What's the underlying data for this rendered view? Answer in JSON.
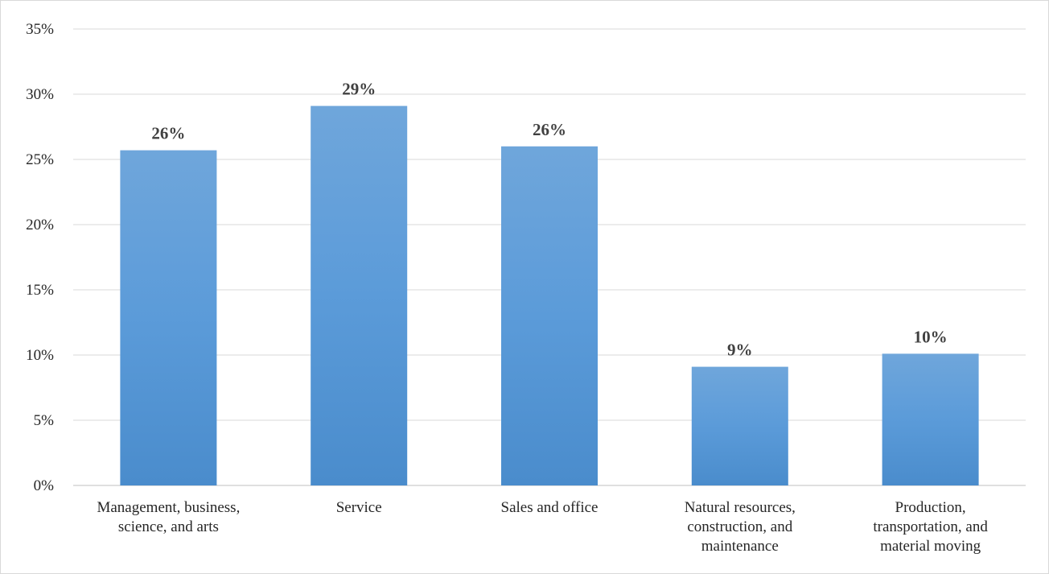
{
  "chart_data": {
    "type": "bar",
    "categories": [
      "Management, business, science, and arts",
      "Service",
      "Sales and office",
      "Natural resources, construction, and maintenance",
      "Production, transportation, and material moving"
    ],
    "category_label_lines": [
      [
        "Management, business,",
        "science, and arts"
      ],
      [
        "Service"
      ],
      [
        "Sales and office"
      ],
      [
        "Natural resources,",
        "construction, and",
        "maintenance"
      ],
      [
        "Production,",
        "transportation, and",
        "material moving"
      ]
    ],
    "values": [
      25.7,
      29.1,
      26.0,
      9.1,
      10.1
    ],
    "data_labels": [
      "26%",
      "29%",
      "26%",
      "9%",
      "10%"
    ],
    "y_ticks": [
      "0%",
      "5%",
      "10%",
      "15%",
      "20%",
      "25%",
      "30%",
      "35%"
    ],
    "ylim": [
      0,
      35
    ],
    "y_step": 5,
    "title": "",
    "xlabel": "",
    "ylabel": "",
    "grid": true,
    "legend": "none",
    "colors": {
      "bar_top": "#6fa6db",
      "bar_bottom": "#4a8ccc",
      "grid": "#d9d9d9",
      "axis": "#bfbfbf",
      "text": "#262626",
      "data_label": "#404040"
    }
  }
}
